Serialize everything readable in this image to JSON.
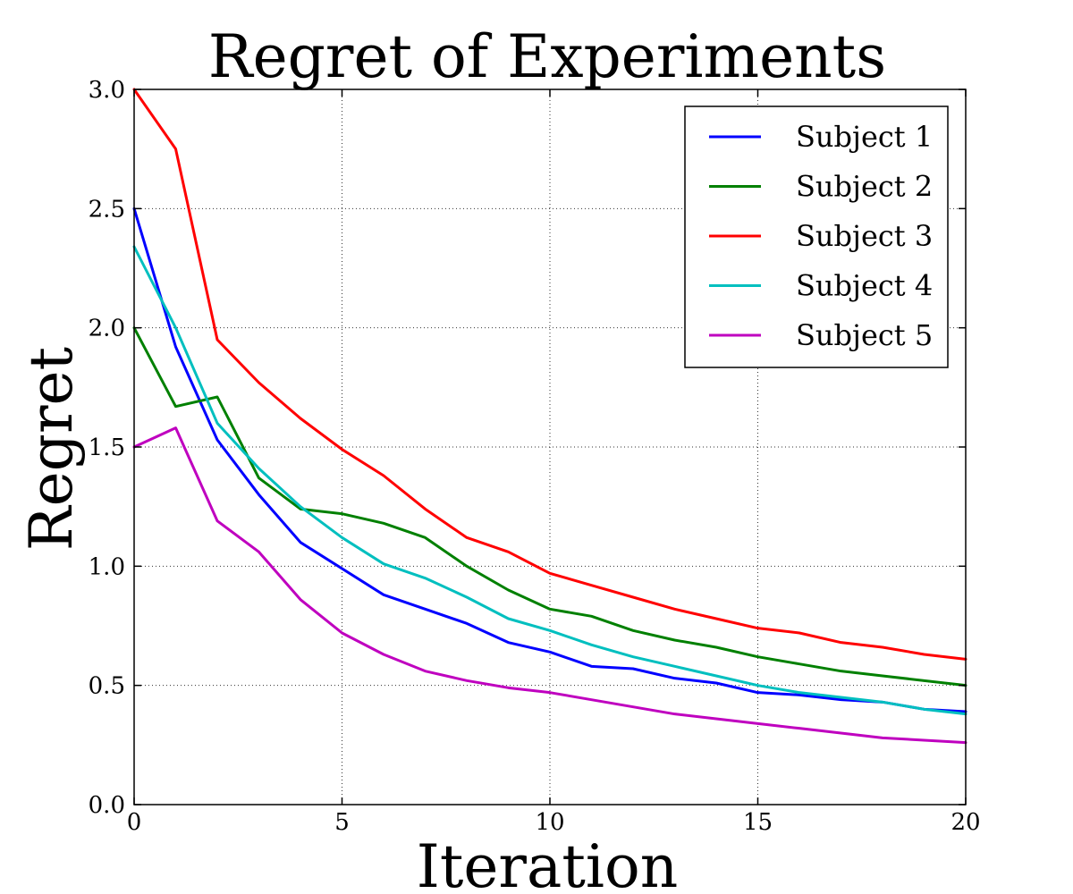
{
  "chart_data": {
    "type": "line",
    "title": "Regret of Experiments",
    "xlabel": "Iteration",
    "ylabel": "Regret",
    "xlim": [
      0,
      20
    ],
    "ylim": [
      0.0,
      3.0
    ],
    "xticks": [
      0,
      5,
      10,
      15,
      20
    ],
    "xtick_labels": [
      "0",
      "5",
      "10",
      "15",
      "20"
    ],
    "yticks": [
      0.0,
      0.5,
      1.0,
      1.5,
      2.0,
      2.5,
      3.0
    ],
    "ytick_labels": [
      "0.0",
      "0.5",
      "1.0",
      "1.5",
      "2.0",
      "2.5",
      "3.0"
    ],
    "grid": true,
    "legend_position": "top-right",
    "x": [
      0,
      1,
      2,
      3,
      4,
      5,
      6,
      7,
      8,
      9,
      10,
      11,
      12,
      13,
      14,
      15,
      16,
      17,
      18,
      19,
      20
    ],
    "series": [
      {
        "name": "Subject 1",
        "color": "#0000ff",
        "values": [
          2.5,
          1.92,
          1.53,
          1.3,
          1.1,
          0.99,
          0.88,
          0.82,
          0.76,
          0.68,
          0.64,
          0.58,
          0.57,
          0.53,
          0.51,
          0.47,
          0.46,
          0.44,
          0.43,
          0.4,
          0.39
        ]
      },
      {
        "name": "Subject 2",
        "color": "#008000",
        "values": [
          2.0,
          1.67,
          1.71,
          1.37,
          1.24,
          1.22,
          1.18,
          1.12,
          1.0,
          0.9,
          0.82,
          0.79,
          0.73,
          0.69,
          0.66,
          0.62,
          0.59,
          0.56,
          0.54,
          0.52,
          0.5
        ]
      },
      {
        "name": "Subject 3",
        "color": "#ff0000",
        "values": [
          3.0,
          2.75,
          1.95,
          1.77,
          1.62,
          1.49,
          1.38,
          1.24,
          1.12,
          1.06,
          0.97,
          0.92,
          0.87,
          0.82,
          0.78,
          0.74,
          0.72,
          0.68,
          0.66,
          0.63,
          0.61
        ]
      },
      {
        "name": "Subject 4",
        "color": "#00bfbf",
        "values": [
          2.34,
          2.0,
          1.6,
          1.41,
          1.25,
          1.12,
          1.01,
          0.95,
          0.87,
          0.78,
          0.73,
          0.67,
          0.62,
          0.58,
          0.54,
          0.5,
          0.47,
          0.45,
          0.43,
          0.4,
          0.38
        ]
      },
      {
        "name": "Subject 5",
        "color": "#bf00bf",
        "values": [
          1.5,
          1.58,
          1.19,
          1.06,
          0.86,
          0.72,
          0.63,
          0.56,
          0.52,
          0.49,
          0.47,
          0.44,
          0.41,
          0.38,
          0.36,
          0.34,
          0.32,
          0.3,
          0.28,
          0.27,
          0.26
        ]
      }
    ]
  }
}
